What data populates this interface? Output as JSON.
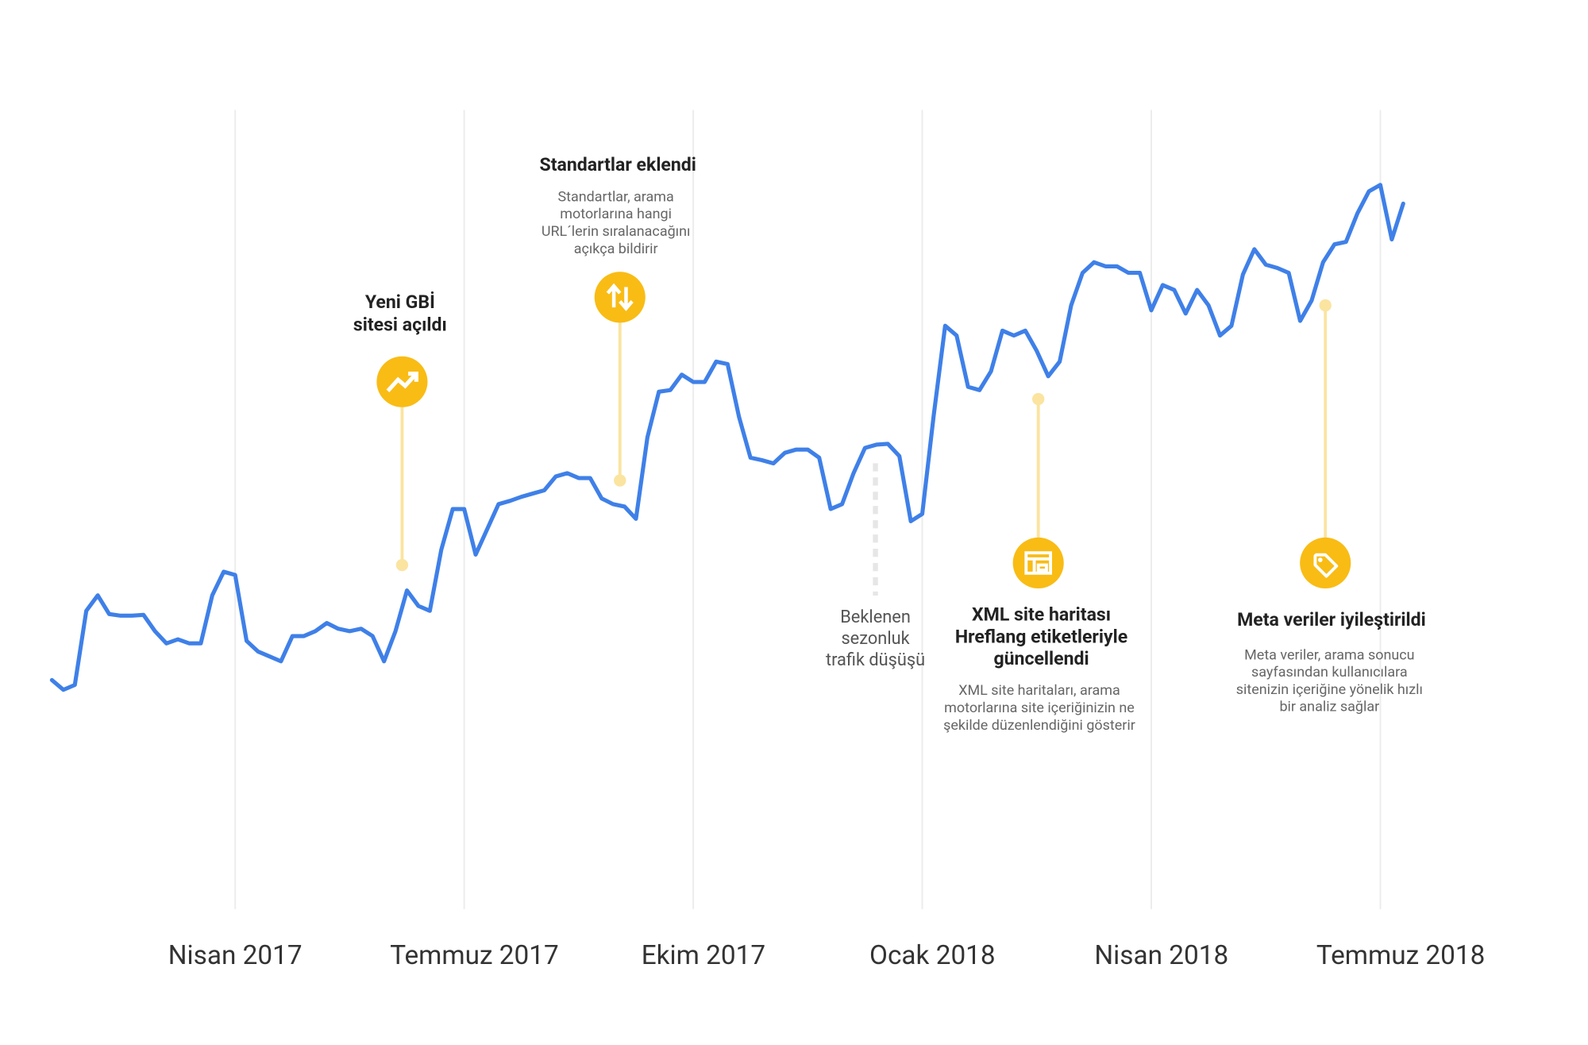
{
  "chart_data": {
    "type": "line",
    "categories": [
      null,
      null,
      null,
      null,
      null,
      null,
      null,
      null,
      null,
      null,
      null,
      null,
      null,
      null,
      null,
      null,
      "Nisan 2017",
      null,
      null,
      null,
      null,
      null,
      null,
      null,
      null,
      null,
      null,
      null,
      null,
      null,
      null,
      null,
      null,
      null,
      null,
      null,
      "Temmuz 2017",
      null,
      null,
      null,
      null,
      null,
      null,
      null,
      null,
      null,
      null,
      null,
      null,
      null,
      null,
      null,
      null,
      null,
      null,
      null,
      "Ekim 2017",
      null,
      null,
      null,
      null,
      null,
      null,
      null,
      null,
      null,
      null,
      null,
      null,
      null,
      null,
      null,
      null,
      null,
      null,
      null,
      "Ocak 2018",
      null,
      null,
      null,
      null,
      null,
      null,
      null,
      null,
      null,
      null,
      null,
      null,
      null,
      null,
      null,
      null,
      null,
      null,
      null,
      "Nisan 2018",
      null,
      null,
      null,
      null,
      null,
      null,
      null,
      null,
      null,
      null,
      null,
      null,
      null,
      null,
      null,
      null,
      null,
      null,
      null,
      "Temmuz 2018",
      null,
      null
    ],
    "values": [
      29,
      27.8,
      28.4,
      37.5,
      39.4,
      37.1,
      36.9,
      36.9,
      37,
      35,
      33.5,
      34,
      33.5,
      33.5,
      39.4,
      42.3,
      41.9,
      33.8,
      32.5,
      31.9,
      31.3,
      34.4,
      34.4,
      35,
      36,
      35.3,
      35,
      35.3,
      34.4,
      31.3,
      35,
      40,
      38.1,
      37.5,
      45,
      50,
      50,
      44.4,
      47.5,
      50.6,
      51,
      51.5,
      51.9,
      52.3,
      54,
      54.4,
      53.8,
      53.8,
      51.3,
      50.6,
      50.3,
      48.8,
      58.8,
      64.4,
      64.6,
      66.5,
      65.6,
      65.6,
      68.1,
      67.8,
      61.3,
      56.3,
      56,
      55.6,
      56.9,
      57.3,
      57.3,
      56.3,
      50,
      50.6,
      54.4,
      57.5,
      57.9,
      58,
      56.5,
      48.5,
      49.4,
      61.5,
      72.5,
      71.3,
      65,
      64.6,
      66.9,
      71.9,
      71.3,
      71.9,
      69.4,
      66.3,
      68.1,
      75,
      79,
      80.3,
      79.8,
      79.8,
      79,
      79,
      74.4,
      77.5,
      76.9,
      74,
      76.9,
      75,
      71.3,
      72.5,
      78.8,
      81.9,
      80,
      79.6,
      79,
      73.1,
      75.6,
      80.3,
      82.5,
      82.8,
      86.3,
      89,
      89.8,
      83.1,
      87.5
    ],
    "color": "#3f80e8",
    "ylim": [
      0,
      100
    ],
    "grid": true,
    "annotations": [
      {
        "title": [
          "Yeni GBİ",
          "sitesi açıldı"
        ]
      },
      {
        "title": [
          "Standartlar eklendi"
        ],
        "text": [
          "Standartlar, arama",
          "motorlarına hangi",
          "URL´lerin sıralanacağını",
          "açıkça bildirir"
        ]
      },
      {
        "title": [
          "XML site haritası",
          "Hreflang etiketleriyle",
          "güncellendi"
        ],
        "text": [
          "XML site haritaları, arama",
          "motorlarına site içeriğinizin ne",
          "şekilde düzenlendiğini gösterir"
        ]
      },
      {
        "title": [
          "Meta veriler iyileştirildi"
        ],
        "text": [
          "Meta veriler, arama sonucu",
          "sayfasından kullanıcılara",
          "sitenizin içeriğine yönelik hızlı",
          "bir analiz sağlar"
        ]
      },
      {
        "note": [
          "Beklenen",
          "sezonluk",
          "trafik düşüşü"
        ]
      }
    ]
  }
}
